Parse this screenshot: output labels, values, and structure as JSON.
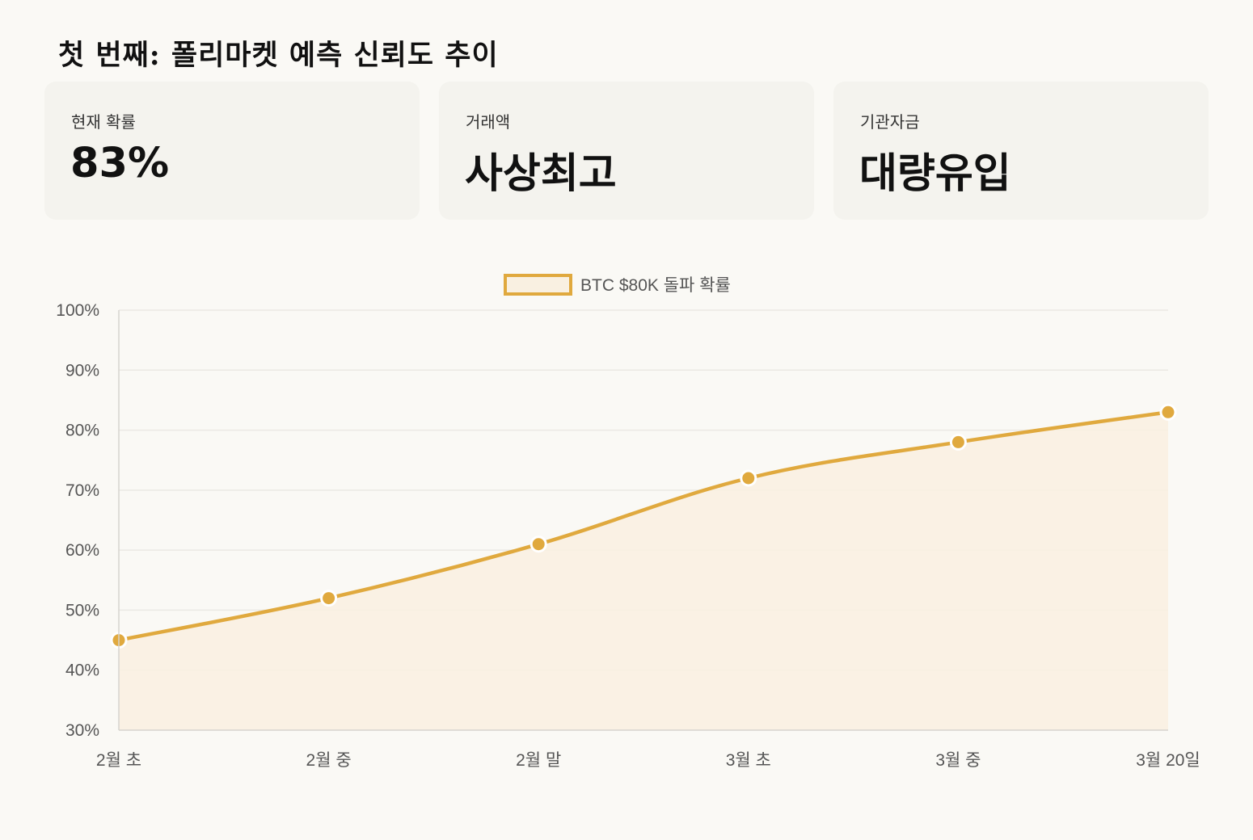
{
  "title": "첫 번째: 폴리마켓 예측 신뢰도 추이",
  "cards": [
    {
      "label": "현재 확률",
      "value": "83%"
    },
    {
      "label": "거래액",
      "value": "사상최고"
    },
    {
      "label": "기관자금",
      "value": "대량유입"
    }
  ],
  "colors": {
    "line": "#e0a93e",
    "fill": "#f9f0e1",
    "grid": "#ebe9e4",
    "text": "#555555"
  },
  "chart_data": {
    "type": "line",
    "categories": [
      "2월 초",
      "2월 중",
      "2월 말",
      "3월 초",
      "3월 중",
      "3월 20일"
    ],
    "series": [
      {
        "name": "BTC $80K 돌파 확률",
        "values": [
          45,
          52,
          61,
          72,
          78,
          83
        ],
        "fill": true
      }
    ],
    "ylim": [
      30,
      100
    ],
    "yticks": [
      30,
      40,
      50,
      60,
      70,
      80,
      90,
      100
    ],
    "ytick_suffix": "%",
    "grid": true,
    "legend": "top-center"
  }
}
